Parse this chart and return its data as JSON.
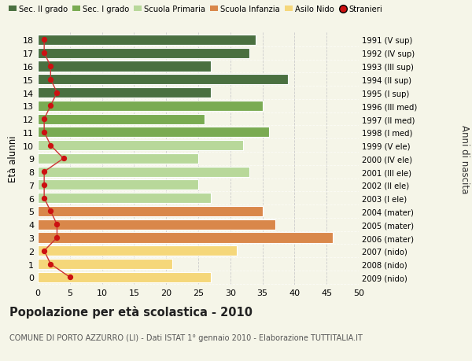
{
  "ages": [
    18,
    17,
    16,
    15,
    14,
    13,
    12,
    11,
    10,
    9,
    8,
    7,
    6,
    5,
    4,
    3,
    2,
    1,
    0
  ],
  "anni_nascita": [
    "1991 (V sup)",
    "1992 (IV sup)",
    "1993 (III sup)",
    "1994 (II sup)",
    "1995 (I sup)",
    "1996 (III med)",
    "1997 (II med)",
    "1998 (I med)",
    "1999 (V ele)",
    "2000 (IV ele)",
    "2001 (III ele)",
    "2002 (II ele)",
    "2003 (I ele)",
    "2004 (mater)",
    "2005 (mater)",
    "2006 (mater)",
    "2007 (nido)",
    "2008 (nido)",
    "2009 (nido)"
  ],
  "bar_values": [
    34,
    33,
    27,
    39,
    27,
    35,
    26,
    36,
    32,
    25,
    33,
    25,
    27,
    35,
    37,
    46,
    31,
    21,
    27
  ],
  "bar_colors": [
    "#4a7040",
    "#4a7040",
    "#4a7040",
    "#4a7040",
    "#4a7040",
    "#7aab52",
    "#7aab52",
    "#7aab52",
    "#b8d89a",
    "#b8d89a",
    "#b8d89a",
    "#b8d89a",
    "#b8d89a",
    "#d9874a",
    "#d9874a",
    "#d9874a",
    "#f5d77a",
    "#f5d77a",
    "#f5d77a"
  ],
  "stranieri_values": [
    1,
    1,
    2,
    2,
    3,
    2,
    1,
    1,
    2,
    4,
    1,
    1,
    1,
    2,
    3,
    3,
    1,
    2,
    5
  ],
  "legend_labels": [
    "Sec. II grado",
    "Sec. I grado",
    "Scuola Primaria",
    "Scuola Infanzia",
    "Asilo Nido",
    "Stranieri"
  ],
  "legend_colors": [
    "#4a7040",
    "#7aab52",
    "#b8d89a",
    "#d9874a",
    "#f5d77a",
    "#cc1111"
  ],
  "ylabel_left": "Età alunni",
  "ylabel_right": "Anni di nascita",
  "xlim": [
    0,
    50
  ],
  "xticks": [
    0,
    5,
    10,
    15,
    20,
    25,
    30,
    35,
    40,
    45,
    50
  ],
  "title": "Popolazione per età scolastica - 2010",
  "subtitle": "COMUNE DI PORTO AZZURRO (LI) - Dati ISTAT 1° gennaio 2010 - Elaborazione TUTTITALIA.IT",
  "bg_color": "#f5f5e8",
  "bar_height": 0.78,
  "stranieri_color": "#cc1111",
  "stranieri_line_color": "#cc3333"
}
